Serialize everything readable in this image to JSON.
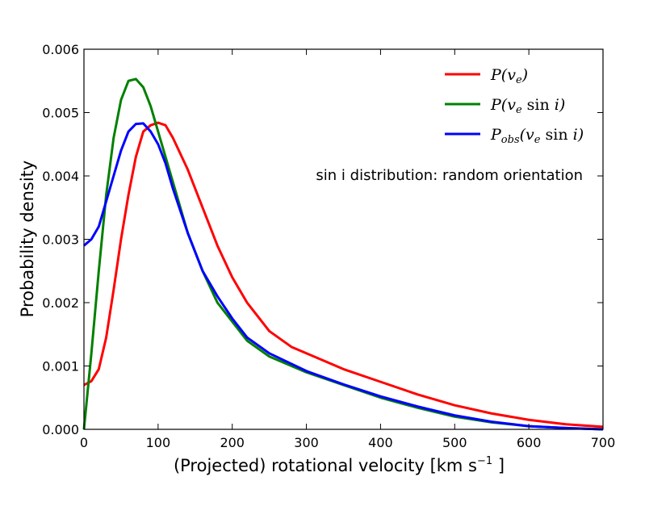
{
  "chart_data": {
    "type": "line",
    "xlabel": "(Projected) rotational velocity [km s",
    "xlabel_sup": "−1",
    "xlabel_end": " ]",
    "ylabel": "Probability density",
    "xlim": [
      0,
      700
    ],
    "ylim": [
      0,
      0.006
    ],
    "xticks": [
      0,
      100,
      200,
      300,
      400,
      500,
      600,
      700
    ],
    "xtick_labels": [
      "0",
      "100",
      "200",
      "300",
      "400",
      "500",
      "600",
      "700"
    ],
    "yticks": [
      0,
      0.001,
      0.002,
      0.003,
      0.004,
      0.005,
      0.006
    ],
    "ytick_labels": [
      "0.000",
      "0.001",
      "0.002",
      "0.003",
      "0.004",
      "0.005",
      "0.006"
    ],
    "grid": false,
    "legend_position": "top-right",
    "annotation": "sin i distribution: random orientation",
    "series": [
      {
        "name": "P(ve)",
        "color": "#ff0000",
        "x": [
          0,
          10,
          20,
          30,
          40,
          50,
          60,
          70,
          80,
          90,
          100,
          110,
          120,
          140,
          160,
          180,
          200,
          220,
          250,
          280,
          300,
          350,
          400,
          450,
          500,
          550,
          600,
          650,
          700
        ],
        "y": [
          0.0007,
          0.00076,
          0.00095,
          0.00145,
          0.0022,
          0.003,
          0.0037,
          0.0043,
          0.0047,
          0.0048,
          0.00484,
          0.0048,
          0.0046,
          0.0041,
          0.0035,
          0.0029,
          0.0024,
          0.002,
          0.00155,
          0.0013,
          0.0012,
          0.00095,
          0.00075,
          0.00055,
          0.00038,
          0.00025,
          0.00015,
          8e-05,
          4e-05
        ]
      },
      {
        "name": "P(ve sin i)",
        "color": "#008000",
        "x": [
          0,
          10,
          20,
          30,
          40,
          50,
          60,
          70,
          80,
          90,
          100,
          110,
          120,
          140,
          160,
          180,
          200,
          220,
          250,
          300,
          350,
          400,
          450,
          500,
          550,
          600,
          650,
          700
        ],
        "y": [
          0.0,
          0.0012,
          0.0025,
          0.0037,
          0.0046,
          0.0052,
          0.0055,
          0.00553,
          0.0054,
          0.0051,
          0.0047,
          0.0043,
          0.0039,
          0.0031,
          0.0025,
          0.002,
          0.0017,
          0.0014,
          0.00115,
          0.0009,
          0.0007,
          0.0005,
          0.00034,
          0.0002,
          0.00011,
          5e-05,
          2e-05,
          0.0
        ]
      },
      {
        "name": "Pobs(ve sin i)",
        "color": "#0000ff",
        "x": [
          0,
          10,
          20,
          30,
          40,
          50,
          60,
          70,
          80,
          90,
          100,
          110,
          120,
          140,
          160,
          180,
          200,
          220,
          250,
          300,
          350,
          400,
          450,
          500,
          550,
          600,
          650,
          700
        ],
        "y": [
          0.0029,
          0.003,
          0.0032,
          0.0036,
          0.004,
          0.0044,
          0.0047,
          0.00482,
          0.00483,
          0.0047,
          0.0045,
          0.0042,
          0.0038,
          0.0031,
          0.0025,
          0.0021,
          0.00175,
          0.00145,
          0.0012,
          0.00092,
          0.00071,
          0.00052,
          0.00036,
          0.00022,
          0.00012,
          5e-05,
          2e-05,
          0.0
        ]
      }
    ]
  }
}
